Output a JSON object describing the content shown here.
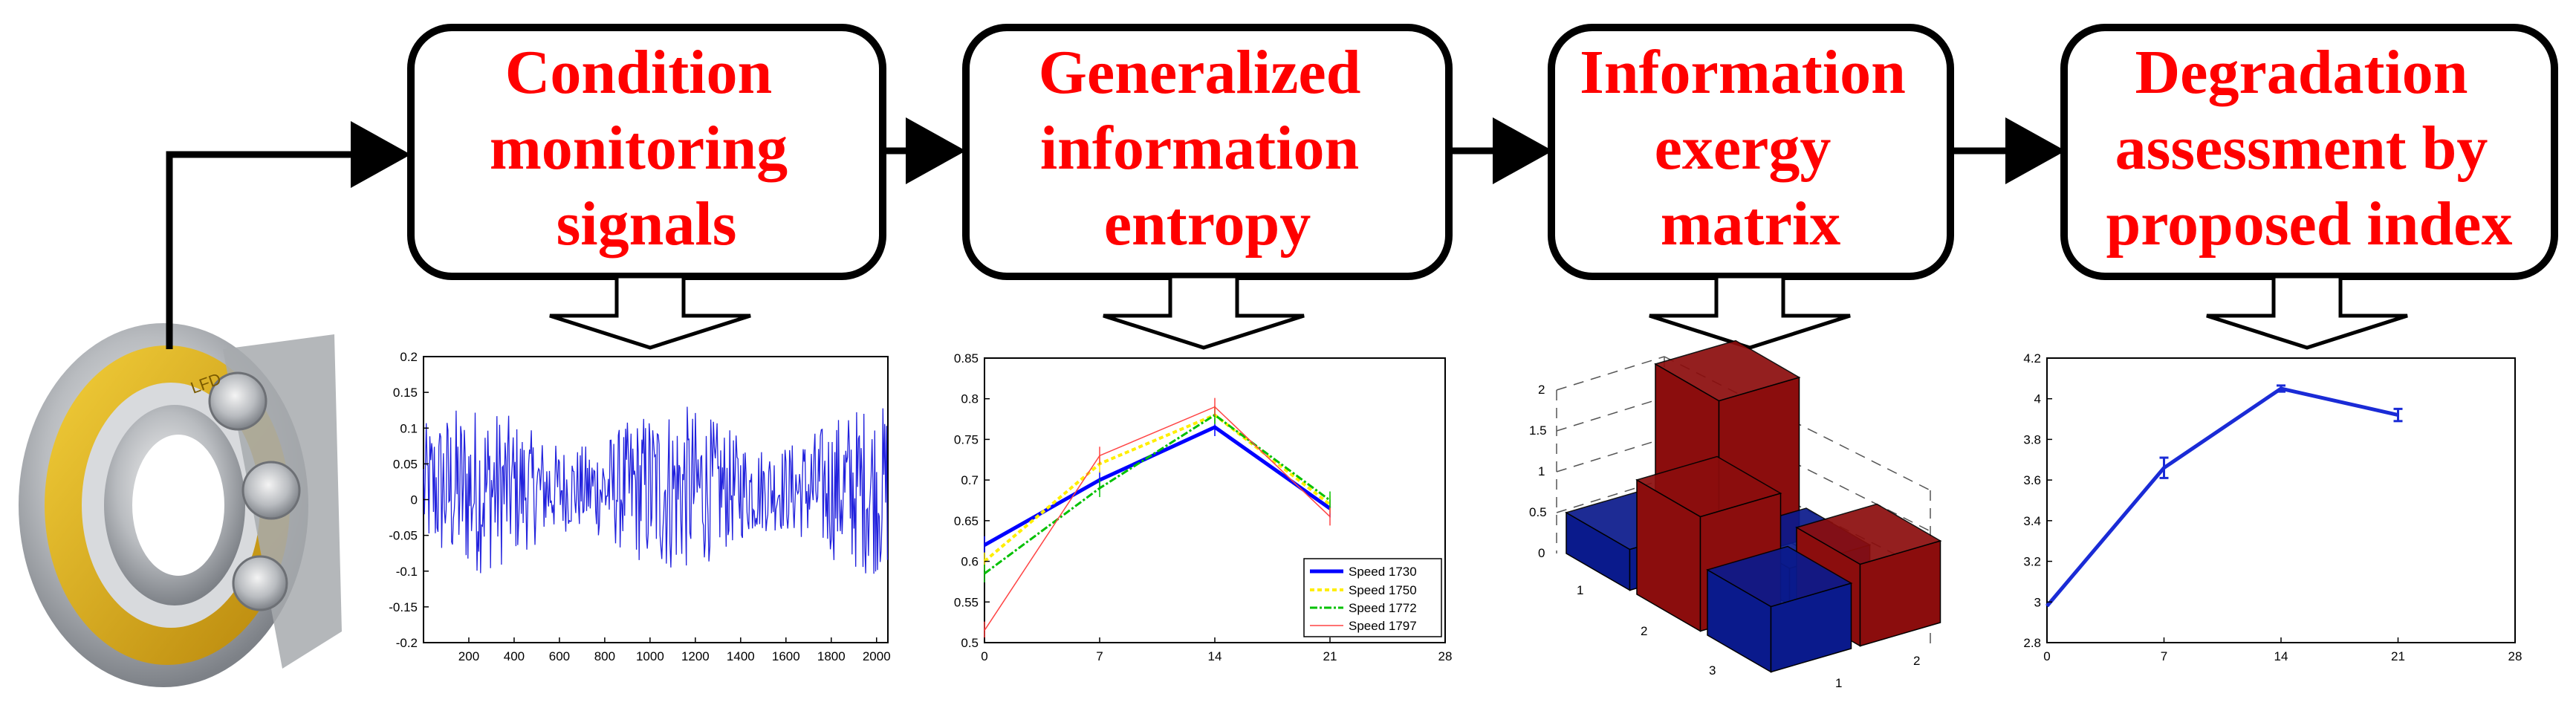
{
  "colors": {
    "step_text": "#ff0000",
    "signal": "#2222dd",
    "bar_blue": "#0a1a8c",
    "bar_red": "#8b0d0d",
    "index_line": "#1a2bd6"
  },
  "steps": [
    {
      "lines": [
        "Condition",
        "monitoring",
        "signals"
      ]
    },
    {
      "lines": [
        "Generalized",
        "information",
        "entropy"
      ]
    },
    {
      "lines": [
        "Information",
        "exergy",
        "matrix"
      ]
    },
    {
      "lines": [
        "Degradation",
        "assessment by",
        "proposed index"
      ]
    }
  ],
  "bearing": {
    "icon": "bearing-icon",
    "label": "LFD"
  },
  "chart_data": [
    {
      "type": "line",
      "x": [
        0,
        2050
      ],
      "xlim": [
        0,
        2050
      ],
      "ylim": [
        -0.2,
        0.2
      ],
      "xticks": [
        "200",
        "400",
        "600",
        "800",
        "1000",
        "1200",
        "1400",
        "1600",
        "1800",
        "2000"
      ],
      "yticks": [
        "0.2",
        "0.15",
        "0.1",
        "0.05",
        "0",
        "-0.05",
        "-0.1",
        "-0.15",
        "-0.2"
      ]
    },
    {
      "type": "line",
      "x": [
        0,
        7,
        14,
        21
      ],
      "xlim": [
        0,
        28
      ],
      "ylim": [
        0.5,
        0.85
      ],
      "xticks": [
        "0",
        "7",
        "14",
        "21",
        "28"
      ],
      "yticks": [
        "0.85",
        "0.8",
        "0.75",
        "0.7",
        "0.65",
        "0.6",
        "0.55",
        "0.5"
      ],
      "series": [
        {
          "name": "Speed 1730",
          "values": [
            0.62,
            0.7,
            0.765,
            0.665
          ]
        },
        {
          "name": "Speed 1750",
          "values": [
            0.6,
            0.72,
            0.78,
            0.67
          ]
        },
        {
          "name": "Speed 1772",
          "values": [
            0.585,
            0.69,
            0.78,
            0.675
          ]
        },
        {
          "name": "Speed 1797",
          "values": [
            0.515,
            0.73,
            0.79,
            0.655
          ]
        }
      ],
      "legend": "bottom-right"
    },
    {
      "type": "bar",
      "zticks": [
        "0",
        "0.5",
        "1",
        "1.5",
        "2"
      ],
      "row_ticks": [
        "1",
        "2",
        "3"
      ],
      "col_ticks": [
        "1",
        "2"
      ],
      "values": [
        [
          0.5,
          2.0
        ],
        [
          1.4,
          0.45
        ],
        [
          0.8,
          1.0
        ]
      ]
    },
    {
      "type": "line",
      "x": [
        0,
        7,
        14,
        21
      ],
      "xlim": [
        0,
        28
      ],
      "ylim": [
        2.8,
        4.2
      ],
      "xticks": [
        "0",
        "7",
        "14",
        "21",
        "28"
      ],
      "yticks": [
        "4.2",
        "4",
        "3.8",
        "3.6",
        "3.4",
        "3.2",
        "3",
        "2.8"
      ],
      "series": [
        {
          "values": [
            2.98,
            3.66,
            4.05,
            3.92
          ],
          "errors": [
            0.0,
            0.05,
            0.015,
            0.03
          ]
        }
      ]
    }
  ]
}
